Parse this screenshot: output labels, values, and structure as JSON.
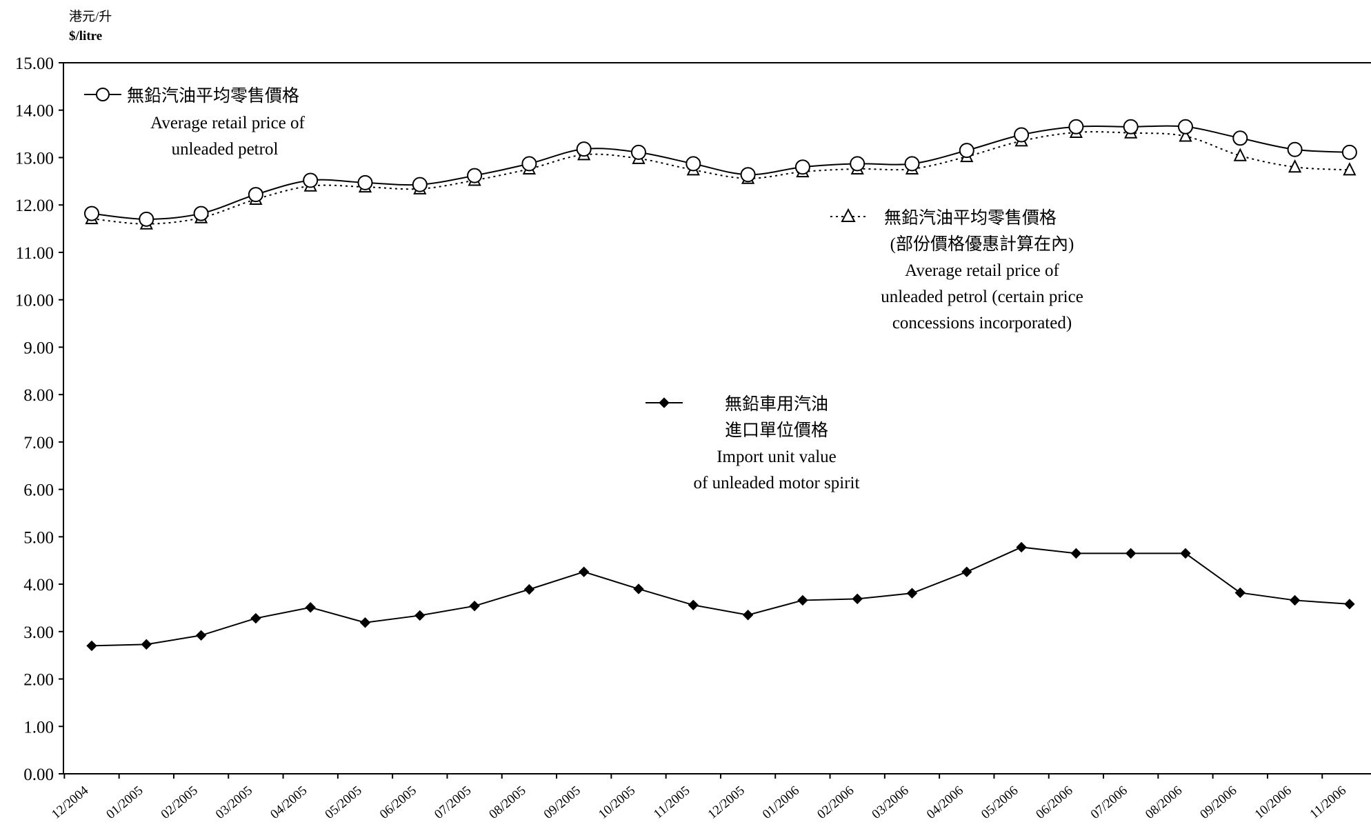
{
  "chart_data": {
    "type": "line",
    "unit_zh": "港元/升",
    "unit_en": "$/litre",
    "ylim": [
      0,
      15
    ],
    "yticks": [
      "0.00",
      "1.00",
      "2.00",
      "3.00",
      "4.00",
      "5.00",
      "6.00",
      "7.00",
      "8.00",
      "9.00",
      "10.00",
      "11.00",
      "12.00",
      "13.00",
      "14.00",
      "15.00"
    ],
    "categories": [
      "12/2004",
      "01/2005",
      "02/2005",
      "03/2005",
      "04/2005",
      "05/2005",
      "06/2005",
      "07/2005",
      "08/2005",
      "09/2005",
      "10/2005",
      "11/2005",
      "12/2005",
      "01/2006",
      "02/2006",
      "03/2006",
      "04/2006",
      "05/2006",
      "06/2006",
      "07/2006",
      "08/2006",
      "09/2006",
      "10/2006",
      "11/2006"
    ],
    "grid": false,
    "series": [
      {
        "key": "retail",
        "legend_lines": [
          "無鉛汽油平均零售價格",
          "Average retail price of",
          "unleaded petrol"
        ],
        "marker": "circle",
        "line": "solid",
        "values": [
          11.82,
          11.7,
          11.82,
          12.22,
          12.52,
          12.47,
          12.43,
          12.62,
          12.87,
          13.18,
          13.11,
          12.87,
          12.64,
          12.8,
          12.87,
          12.87,
          13.15,
          13.48,
          13.65,
          13.65,
          13.65,
          13.41,
          13.17,
          13.11
        ]
      },
      {
        "key": "concession",
        "legend_lines": [
          "無鉛汽油平均零售價格",
          "(部份價格優惠計算在內)",
          "Average retail price of",
          "unleaded petrol (certain price",
          "concessions incorporated)"
        ],
        "marker": "triangle",
        "line": "dotted",
        "values": [
          11.71,
          11.6,
          11.73,
          12.12,
          12.4,
          12.38,
          12.34,
          12.52,
          12.76,
          13.06,
          12.98,
          12.74,
          12.56,
          12.7,
          12.76,
          12.76,
          13.02,
          13.35,
          13.53,
          13.52,
          13.45,
          13.04,
          12.8,
          12.74
        ]
      },
      {
        "key": "import",
        "legend_lines": [
          "無鉛車用汽油",
          "進口單位價格",
          "Import unit value",
          "of unleaded motor spirit"
        ],
        "marker": "diamond",
        "line": "solid",
        "values": [
          2.7,
          2.73,
          2.92,
          3.28,
          3.51,
          3.19,
          3.34,
          3.54,
          3.89,
          4.26,
          3.9,
          3.56,
          3.35,
          3.66,
          3.69,
          3.81,
          4.26,
          4.78,
          4.65,
          4.65,
          4.65,
          3.82,
          3.66,
          3.58
        ]
      }
    ]
  }
}
